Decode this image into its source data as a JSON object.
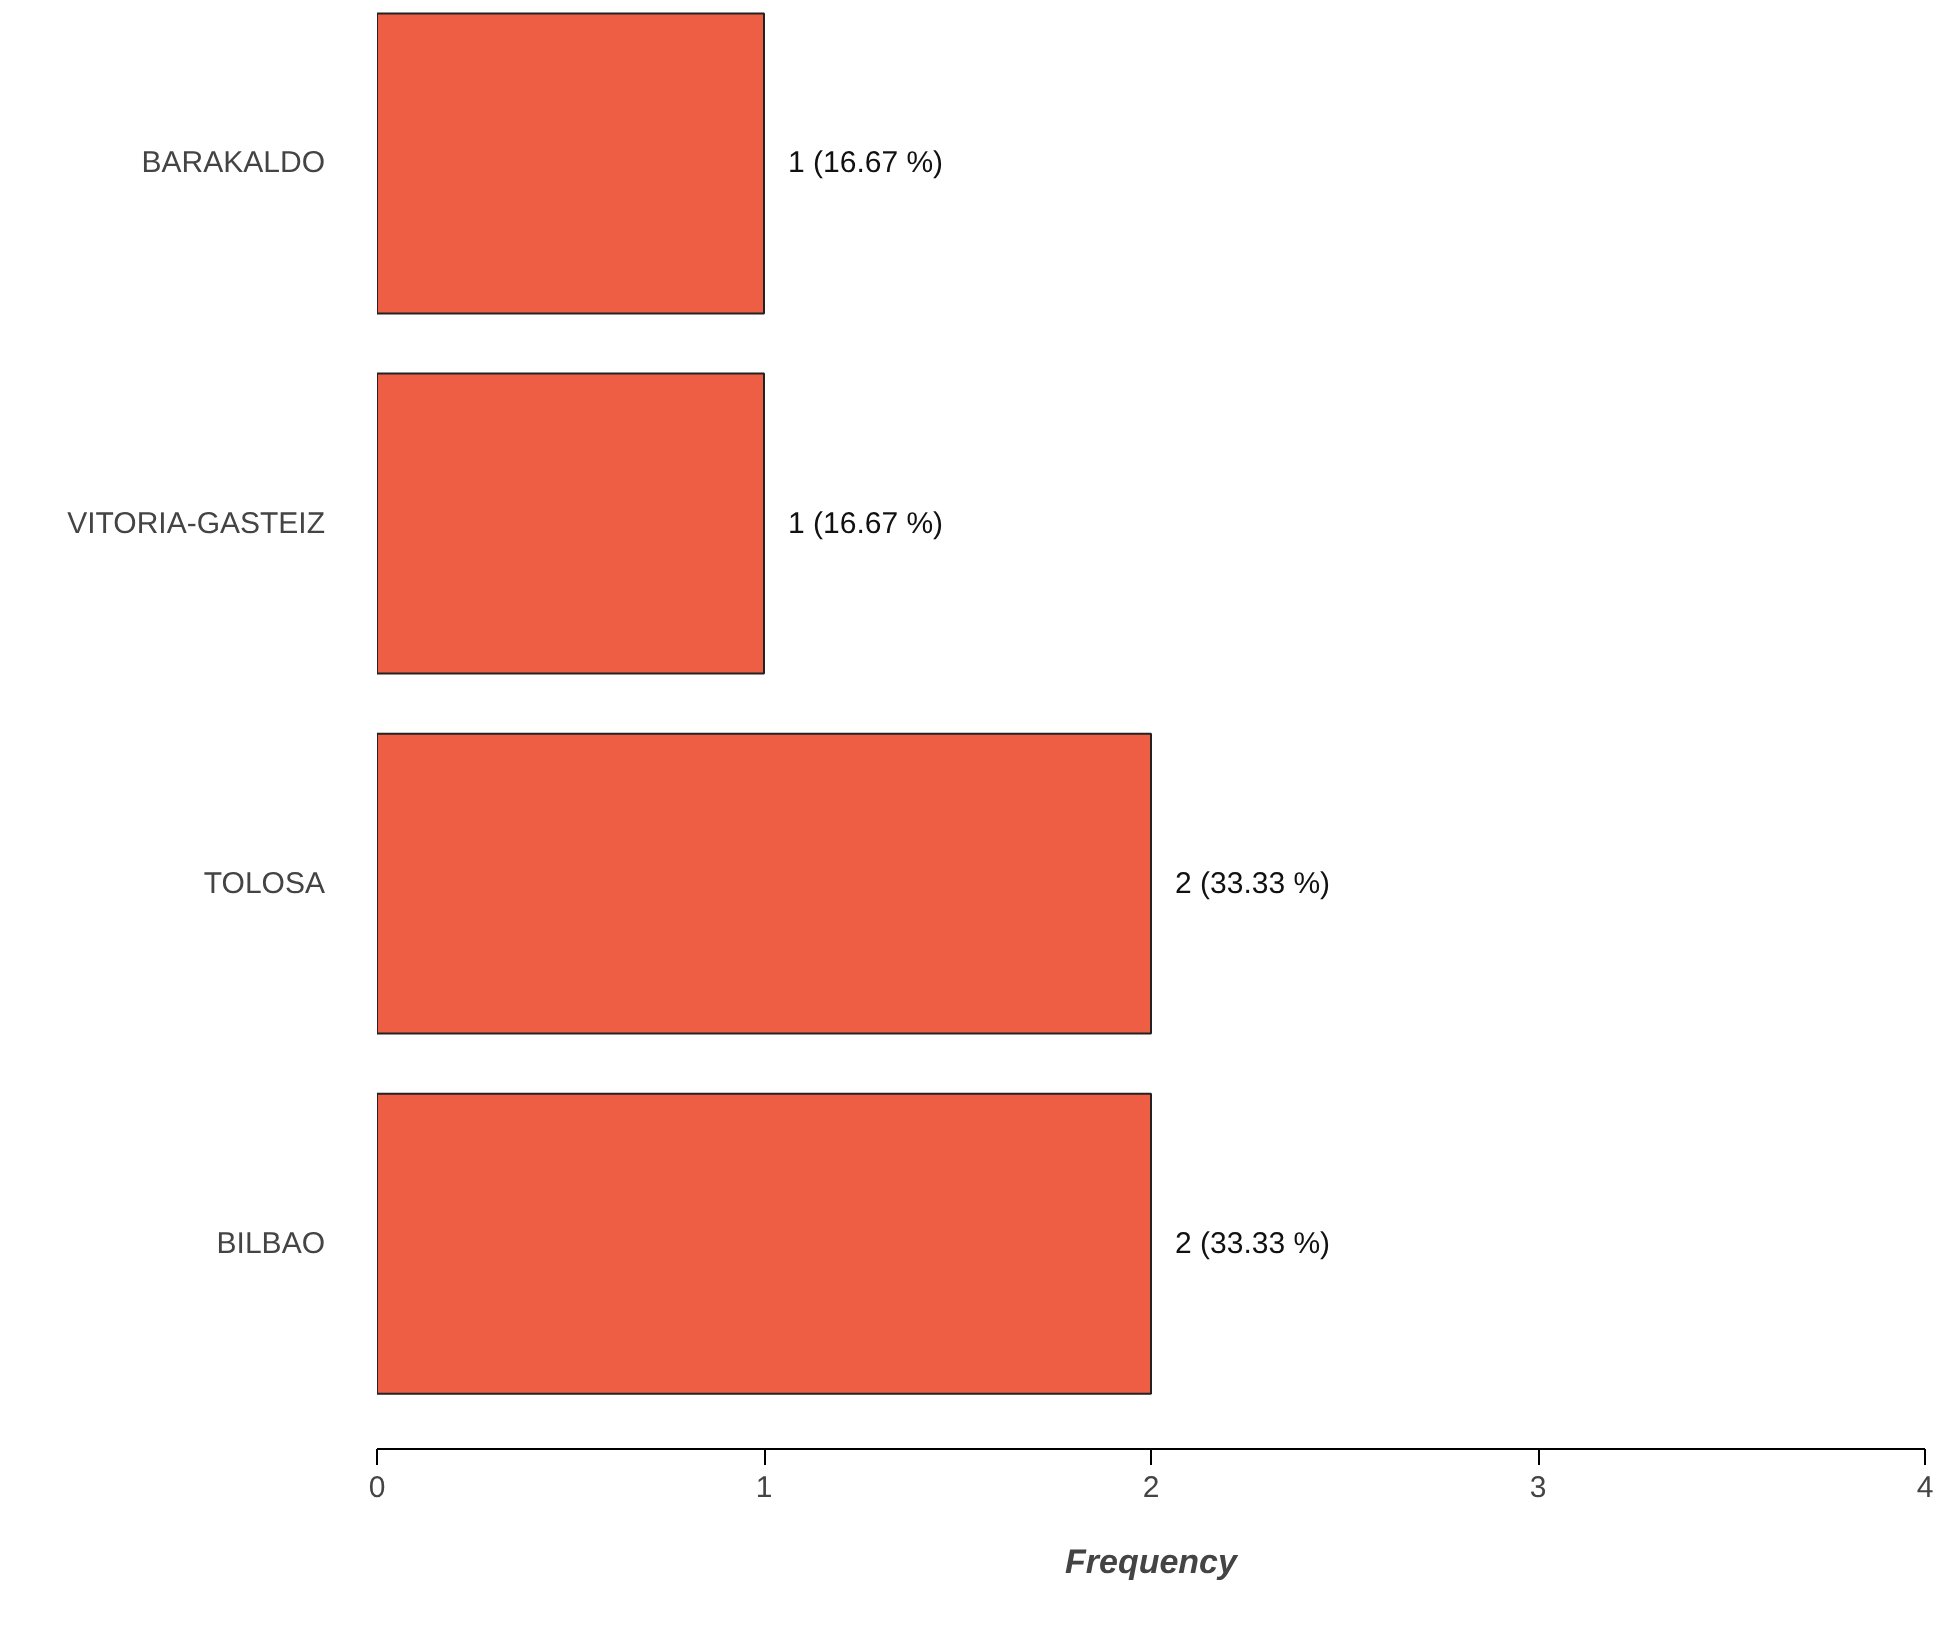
{
  "chart_data": {
    "type": "bar",
    "orientation": "horizontal",
    "xlabel": "Frequency",
    "categories": [
      "BARAKALDO",
      "VITORIA-GASTEIZ",
      "TOLOSA",
      "BILBAO"
    ],
    "values": [
      1,
      1,
      2,
      2
    ],
    "value_labels": [
      "1 (16.67 %)",
      "1 (16.67 %)",
      "2 (33.33 %)",
      "2 (33.33 %)"
    ],
    "color": "#ee5e45",
    "xlim": [
      0,
      4
    ],
    "xticks": [
      0,
      1,
      2,
      3,
      4
    ],
    "grid": false
  }
}
